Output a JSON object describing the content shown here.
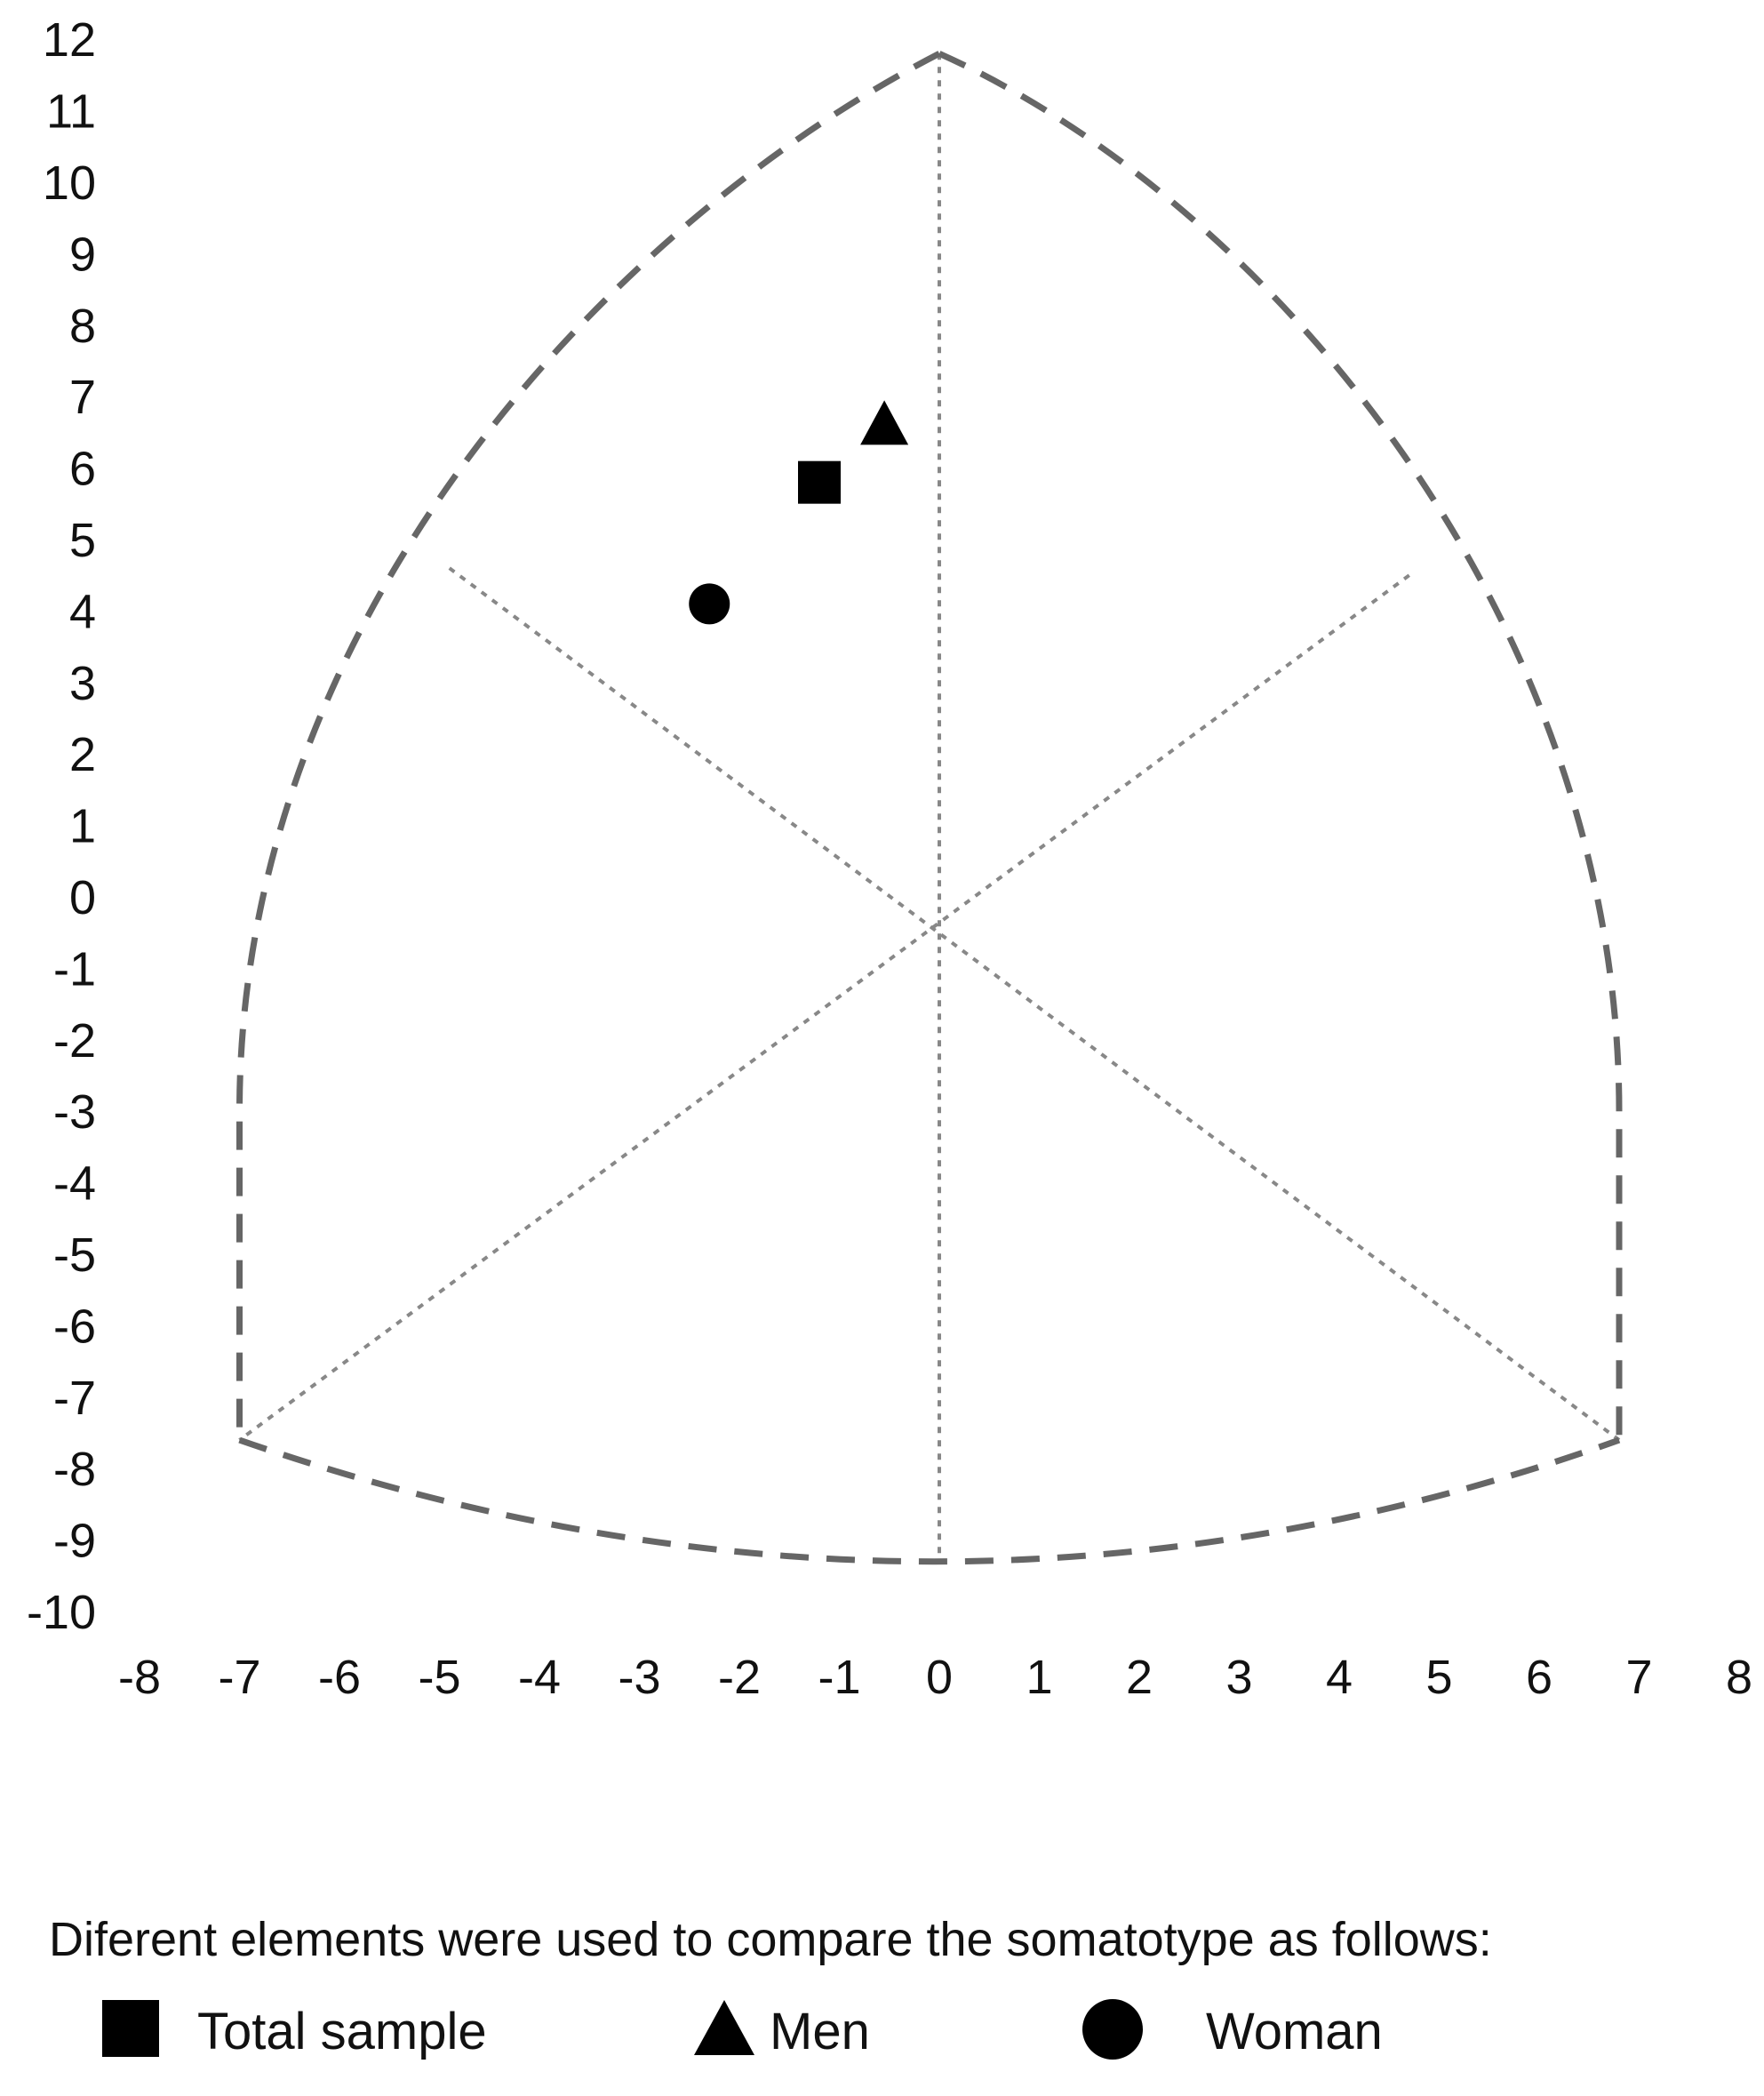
{
  "chart_data": {
    "type": "scatter",
    "title": "",
    "xlabel": "",
    "ylabel": "",
    "xlim": [
      -8,
      8
    ],
    "ylim": [
      -10,
      12
    ],
    "x_ticks": [
      -8,
      -7,
      -6,
      -5,
      -4,
      -3,
      -2,
      -1,
      0,
      1,
      2,
      3,
      4,
      5,
      6,
      7,
      8
    ],
    "y_ticks": [
      12,
      11,
      10,
      9,
      8,
      7,
      6,
      5,
      4,
      3,
      2,
      1,
      0,
      -1,
      -2,
      -3,
      -4,
      -5,
      -6,
      -7,
      -8,
      -9,
      -10
    ],
    "grid": false,
    "somatochart": {
      "apex_top": [
        0,
        11.8
      ],
      "corner_left": [
        -7,
        -7.6
      ],
      "corner_right": [
        6.8,
        -7.6
      ],
      "bottom_mid": [
        0,
        -9.3
      ],
      "center": [
        0,
        -0.3
      ],
      "upper_left_mid": [
        -4.9,
        4.6
      ],
      "upper_right_mid": [
        4.7,
        4.5
      ]
    },
    "series": [
      {
        "name": "Total sample",
        "marker": "square",
        "x": -1.2,
        "y": 5.8
      },
      {
        "name": "Men",
        "marker": "triangle",
        "x": -0.55,
        "y": 6.6
      },
      {
        "name": "Woman",
        "marker": "circle",
        "x": -2.3,
        "y": 4.1
      }
    ],
    "colors": {
      "outline": "#666666",
      "guides": "#888888",
      "markers": "#000000",
      "text": "#111111"
    }
  },
  "legend": {
    "title": "Diferent elements were used to compare the somatotype as follows:",
    "items": [
      {
        "label": "Total sample",
        "icon": "square-icon"
      },
      {
        "label": "Men",
        "icon": "triangle-icon"
      },
      {
        "label": "Woman",
        "icon": "circle-icon"
      }
    ]
  }
}
